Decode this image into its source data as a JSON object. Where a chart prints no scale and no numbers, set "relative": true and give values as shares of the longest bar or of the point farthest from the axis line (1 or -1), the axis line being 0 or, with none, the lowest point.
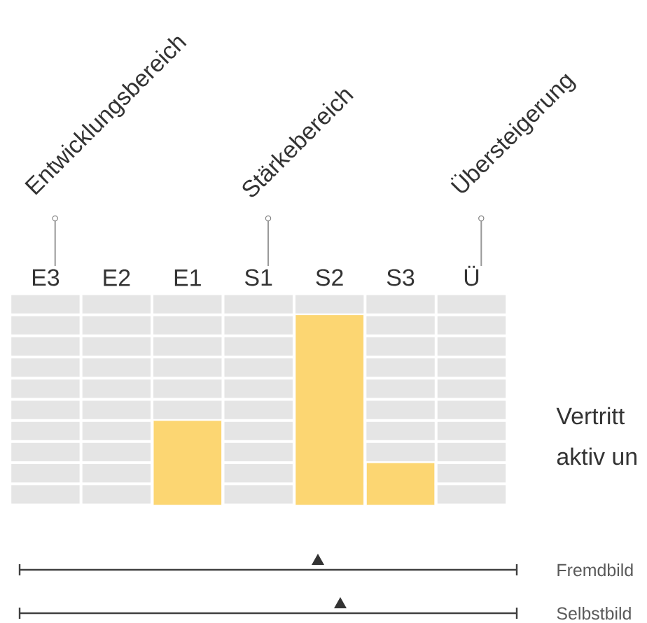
{
  "chart_data": [
    {
      "type": "bar",
      "relative": true,
      "grid": true,
      "categories": [
        "E3",
        "E2",
        "E1",
        "S1",
        "S2",
        "S3",
        "Ü"
      ],
      "values": [
        0,
        0,
        0.444,
        0,
        1,
        0.222,
        0
      ],
      "color": "#fcd672",
      "annotations": [
        "Entwicklungsbereich",
        "Stärkebereich",
        "Übersteigerung",
        "Vertritt",
        "aktiv un"
      ]
    },
    {
      "type": "other",
      "annotations": [
        "Fremdbild",
        "Selbstbild"
      ]
    }
  ]
}
